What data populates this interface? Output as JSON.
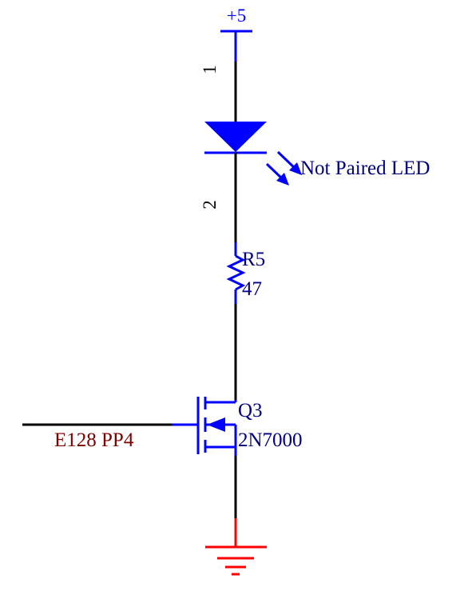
{
  "colors": {
    "wire": "#000000",
    "component": "#0000ff",
    "ground": "#ff0000",
    "net_label": "#800000",
    "label": "#000080"
  },
  "power": {
    "label": "+5"
  },
  "led": {
    "pin_top": "1",
    "pin_bottom": "2",
    "label": "Not Paired LED"
  },
  "resistor": {
    "designator": "R5",
    "value": "47"
  },
  "mosfet": {
    "designator": "Q3",
    "part": "2N7000"
  },
  "net": {
    "label": "E128 PP4"
  },
  "icons": [
    "power-port-icon",
    "led-diode-icon",
    "resistor-icon",
    "n-mosfet-icon",
    "ground-icon"
  ]
}
